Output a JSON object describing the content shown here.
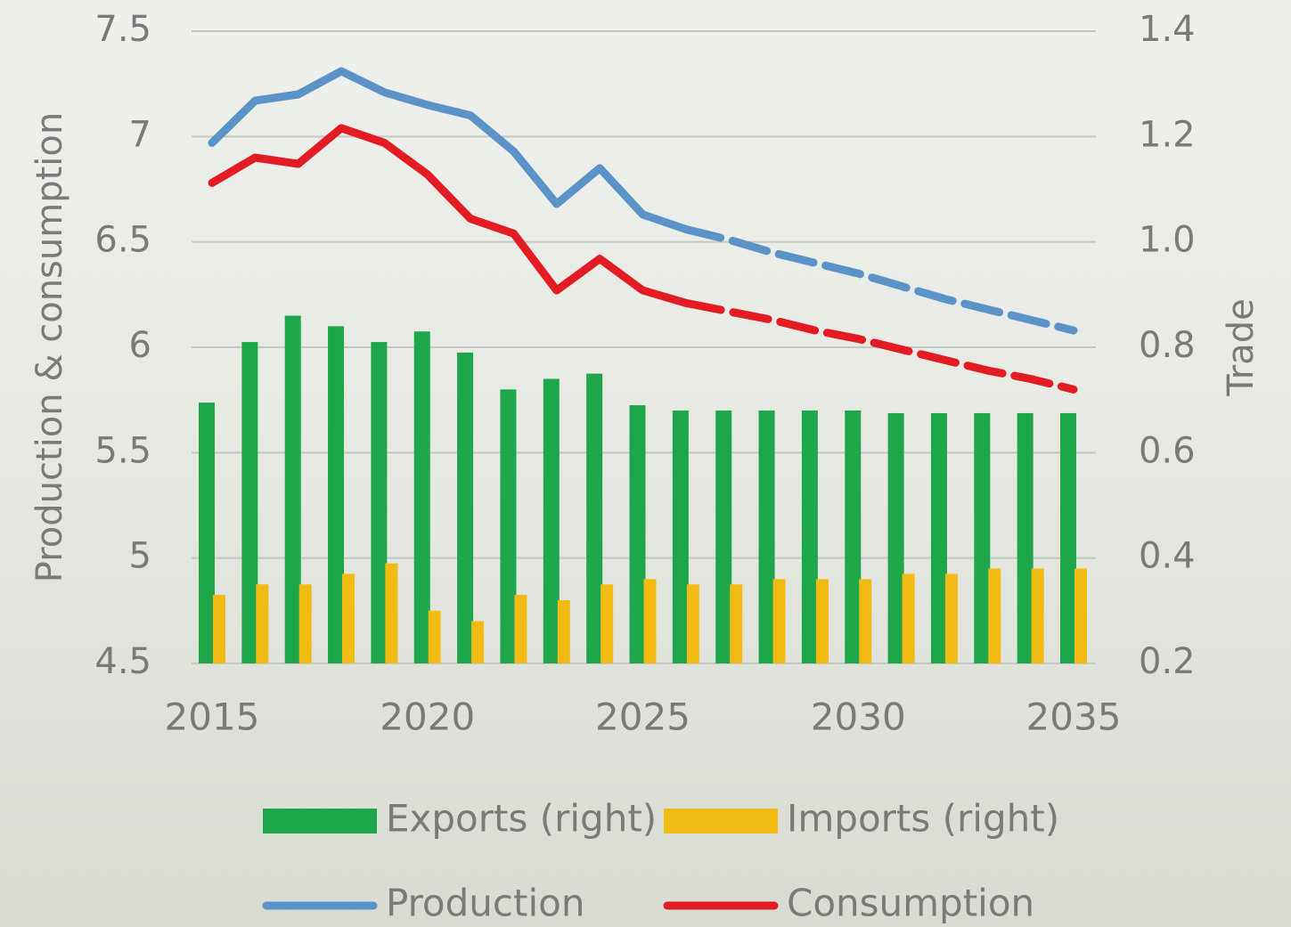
{
  "chart_data": {
    "type": "combo",
    "y_label": "Production & consumption",
    "y2_label": "Trade",
    "x": [
      2015,
      2016,
      2017,
      2018,
      2019,
      2020,
      2021,
      2022,
      2023,
      2024,
      2025,
      2026,
      2027,
      2028,
      2029,
      2030,
      2031,
      2032,
      2033,
      2034,
      2035
    ],
    "xlim": [
      2015,
      2035
    ],
    "xticks": [
      2015,
      2020,
      2025,
      2030,
      2035
    ],
    "ylim": [
      4.5,
      7.5
    ],
    "yticks": [
      4.5,
      5,
      5.5,
      6,
      6.5,
      7,
      7.5
    ],
    "y2lim": [
      0.2,
      1.4
    ],
    "y2ticks": [
      0.2,
      0.4,
      0.6,
      0.8,
      {
        "value": 1,
        "label": "1.0"
      },
      1.2,
      1.4
    ],
    "grid": true,
    "projection_from": 2026,
    "series": [
      {
        "name": "Exports (right)",
        "type": "bar",
        "axis": "y2",
        "color": "#1ea64a",
        "values": [
          0.695,
          0.81,
          0.86,
          0.84,
          0.81,
          0.83,
          0.79,
          0.72,
          0.74,
          0.75,
          0.69,
          0.68,
          0.68,
          0.68,
          0.68,
          0.68,
          0.675,
          0.675,
          0.675,
          0.675,
          0.675
        ]
      },
      {
        "name": "Imports (right)",
        "type": "bar",
        "axis": "y2",
        "color": "#f2bb14",
        "values": [
          0.33,
          0.35,
          0.35,
          0.37,
          0.39,
          0.3,
          0.28,
          0.33,
          0.32,
          0.35,
          0.36,
          0.35,
          0.35,
          0.36,
          0.36,
          0.36,
          0.37,
          0.37,
          0.38,
          0.38,
          0.38
        ]
      },
      {
        "name": "Production",
        "type": "line",
        "color": "#5b93c9",
        "values": [
          6.97,
          7.17,
          7.2,
          7.31,
          7.21,
          7.15,
          7.1,
          6.93,
          6.68,
          6.85,
          6.63,
          6.56,
          6.51,
          6.45,
          6.4,
          6.35,
          6.29,
          6.23,
          6.18,
          6.13,
          6.08
        ]
      },
      {
        "name": "Consumption",
        "type": "line",
        "color": "#e31b23",
        "values": [
          6.78,
          6.9,
          6.87,
          7.04,
          6.97,
          6.82,
          6.61,
          6.54,
          6.27,
          6.42,
          6.27,
          6.21,
          6.17,
          6.13,
          6.08,
          6.04,
          5.99,
          5.94,
          5.89,
          5.85,
          5.8
        ]
      }
    ]
  }
}
